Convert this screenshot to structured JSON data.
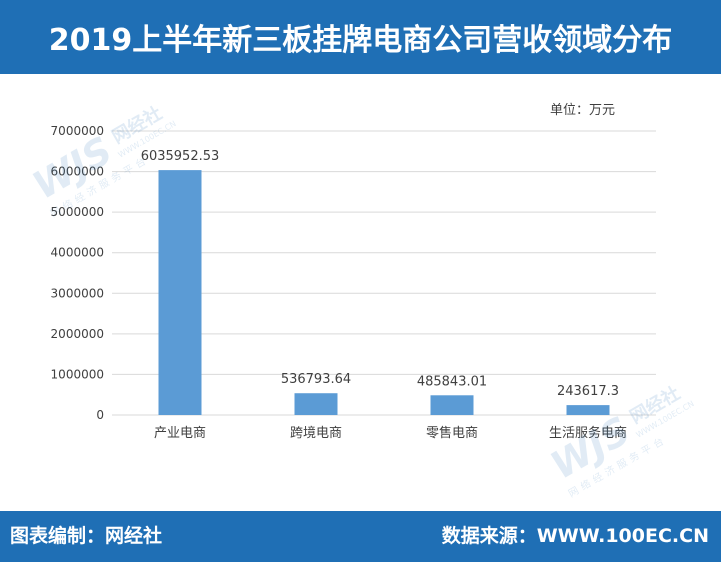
{
  "header": {
    "title": "2019上半年新三板挂牌电商公司营收领域分布"
  },
  "footer": {
    "left_label": "图表编制：网经社",
    "right_label": "数据来源：WWW.100EC.CN"
  },
  "watermark": {
    "mark": "WJS",
    "name": "网经社",
    "url": "WWW.100EC.CN",
    "slogan": "网络经济服务平台"
  },
  "colors": {
    "band": "#1f6fb5",
    "bar": "#5b9bd5",
    "grid": "#d9d9d9",
    "text": "#404040"
  },
  "chart_data": {
    "type": "bar",
    "title": "",
    "unit_label": "单位：万元",
    "categories": [
      "产业电商",
      "跨境电商",
      "零售电商",
      "生活服务电商"
    ],
    "values": [
      6035952.53,
      536793.64,
      485843.01,
      243617.3
    ],
    "data_labels": [
      "6035952.53",
      "536793.64",
      "485843.01",
      "243617.3"
    ],
    "y_ticks": [
      "0",
      "1000000",
      "2000000",
      "3000000",
      "4000000",
      "5000000",
      "6000000",
      "7000000"
    ],
    "ylim": [
      0,
      7000000
    ],
    "grid": true,
    "legend": "none"
  }
}
